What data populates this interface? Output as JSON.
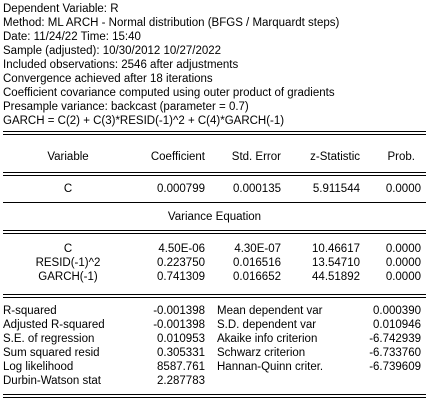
{
  "header_lines": [
    "Dependent Variable: R",
    "Method: ML ARCH - Normal distribution (BFGS / Marquardt steps)",
    "Date: 11/24/22   Time: 15:40",
    "Sample (adjusted): 10/30/2012 10/27/2022",
    "Included observations: 2546 after adjustments",
    "Convergence achieved after 18 iterations",
    "Coefficient covariance computed using outer product of gradients",
    "Presample variance: backcast (parameter = 0.7)",
    "GARCH = C(2) + C(3)*RESID(-1)^2 + C(4)*GARCH(-1)"
  ],
  "columns": [
    "Variable",
    "Coefficient",
    "Std. Error",
    "z-Statistic",
    "Prob."
  ],
  "mean_rows": [
    {
      "variable": "C",
      "coef": "0.000799",
      "se": "0.000135",
      "z": "5.911544",
      "p": "0.0000"
    }
  ],
  "variance_title": "Variance Equation",
  "variance_rows": [
    {
      "variable": "C",
      "coef": "4.50E-06",
      "se": "4.30E-07",
      "z": "10.46617",
      "p": "0.0000"
    },
    {
      "variable": "RESID(-1)^2",
      "coef": "0.223750",
      "se": "0.016516",
      "z": "13.54710",
      "p": "0.0000"
    },
    {
      "variable": "GARCH(-1)",
      "coef": "0.741309",
      "se": "0.016652",
      "z": "44.51892",
      "p": "0.0000"
    }
  ],
  "stats": [
    {
      "l_label": "R-squared",
      "l_val": "-0.001398",
      "r_label": "Mean dependent var",
      "r_val": "0.000390"
    },
    {
      "l_label": "Adjusted R-squared",
      "l_val": "-0.001398",
      "r_label": "S.D. dependent var",
      "r_val": "0.010946"
    },
    {
      "l_label": "S.E. of regression",
      "l_val": "0.010953",
      "r_label": "Akaike info criterion",
      "r_val": "-6.742939"
    },
    {
      "l_label": "Sum squared resid",
      "l_val": "0.305331",
      "r_label": "Schwarz criterion",
      "r_val": "-6.733760"
    },
    {
      "l_label": "Log likelihood",
      "l_val": "8587.761",
      "r_label": "Hannan-Quinn criter.",
      "r_val": "-6.739609"
    },
    {
      "l_label": "Durbin-Watson stat",
      "l_val": "2.287783",
      "r_label": "",
      "r_val": ""
    }
  ]
}
